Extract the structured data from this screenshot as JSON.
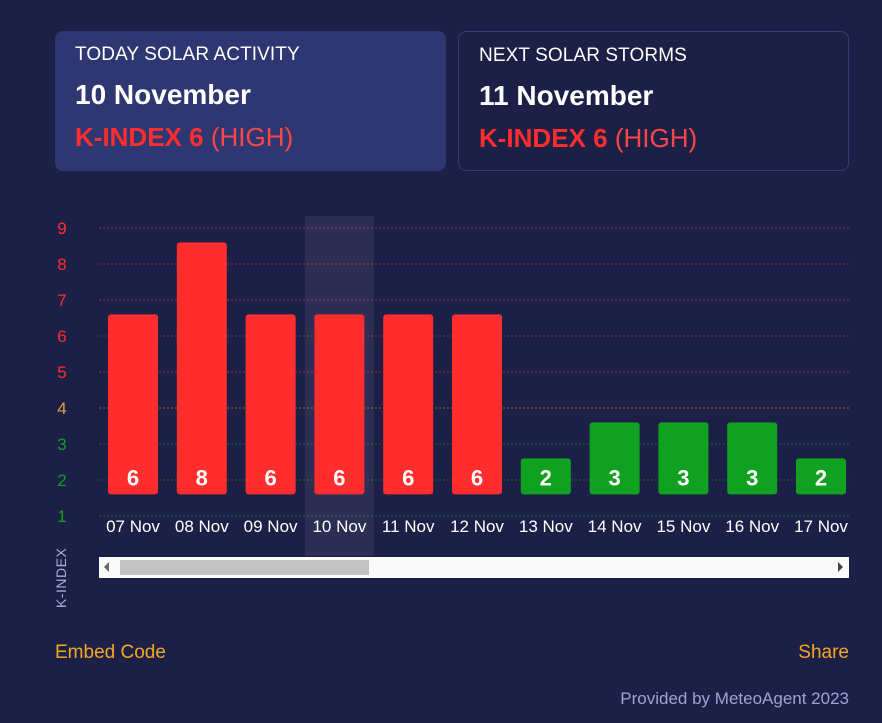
{
  "today_card": {
    "label": "TODAY SOLAR ACTIVITY",
    "date": "10 November",
    "kindex": "K-INDEX 6",
    "level": "(HIGH)"
  },
  "next_card": {
    "label": "NEXT SOLAR STORMS",
    "date": "11 November",
    "kindex": "K-INDEX 6",
    "level": "(HIGH)"
  },
  "chart_data": {
    "type": "bar",
    "categories": [
      "07 Nov",
      "08 Nov",
      "09 Nov",
      "10 Nov",
      "11 Nov",
      "12 Nov",
      "13 Nov",
      "14 Nov",
      "15 Nov",
      "16 Nov",
      "17 Nov"
    ],
    "values": [
      6,
      8,
      6,
      6,
      6,
      6,
      2,
      3,
      3,
      3,
      2
    ],
    "highlighted_category": "10 Nov",
    "ylabel": "K-INDEX",
    "ylim": [
      1,
      9
    ],
    "yticks": [
      1,
      2,
      3,
      4,
      5,
      6,
      7,
      8,
      9
    ],
    "grid": true,
    "colors": {
      "high": "#ff2d2d",
      "moderate": "#e6a13a",
      "low": "#0fa11f"
    }
  },
  "footer": {
    "embed": "Embed Code",
    "share": "Share",
    "credit": "Provided by MeteoAgent 2023"
  }
}
